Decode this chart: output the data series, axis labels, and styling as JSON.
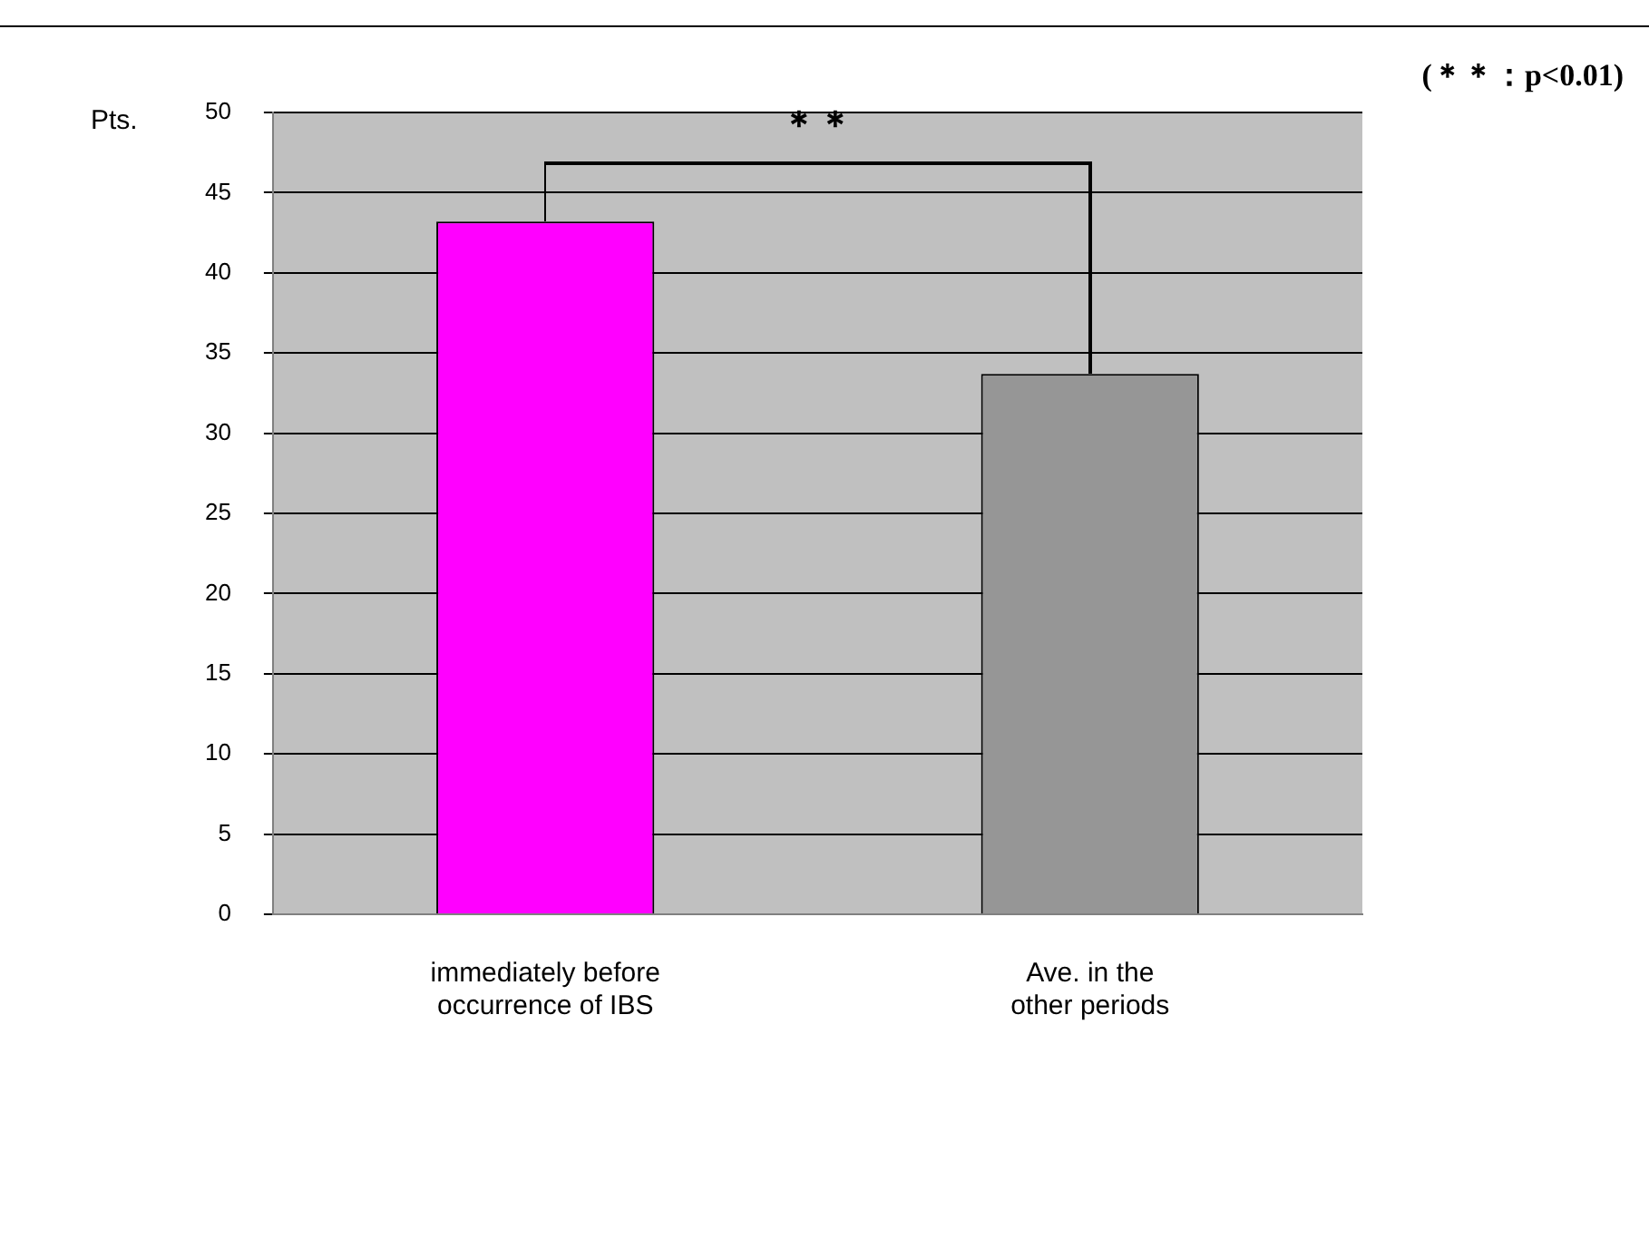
{
  "chart_data": {
    "type": "bar",
    "ylabel": "Pts.",
    "categories": [
      "immediately before occurrence of IBS",
      "Ave. in the other periods"
    ],
    "values": [
      43.2,
      33.7
    ],
    "colors": [
      "#ff00ff",
      "#969696"
    ],
    "ylim": [
      0,
      50
    ],
    "yticks": [
      0,
      5,
      10,
      15,
      20,
      25,
      30,
      35,
      40,
      45,
      50
    ],
    "grid": "y",
    "annotations": [
      "＊＊",
      "(＊＊：p<0.01)"
    ]
  }
}
